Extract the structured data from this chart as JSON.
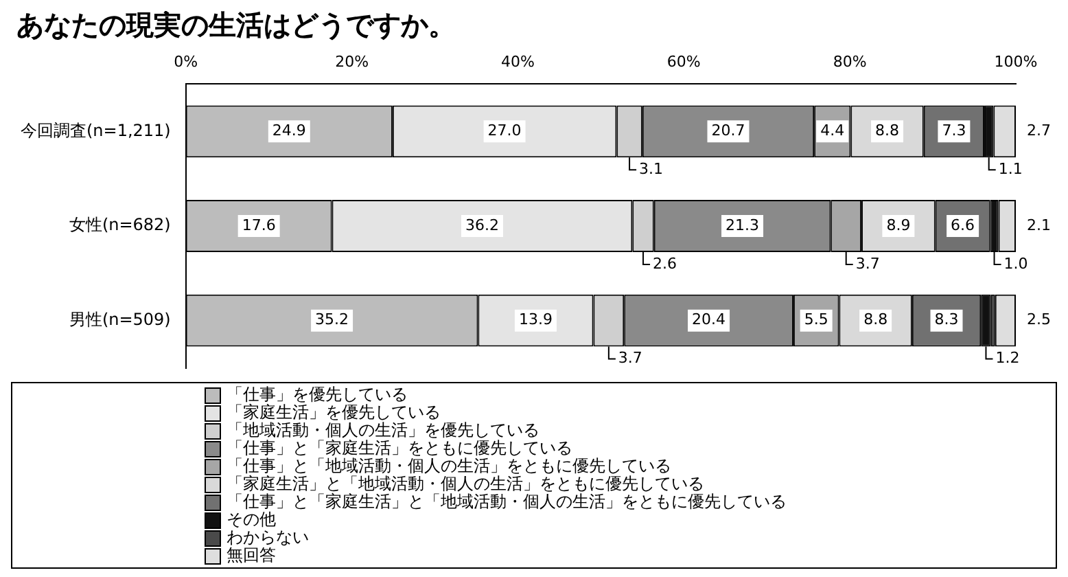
{
  "chart_data": {
    "type": "bar",
    "orientation": "horizontal",
    "stacked": true,
    "title": "あなたの現実の生活はどうですか。",
    "categories": [
      "今回調査(n=1,211)",
      "女性(n=682)",
      "男性(n=509)"
    ],
    "xlim": [
      0,
      100
    ],
    "xticks": [
      {
        "value": 0,
        "label": "0%"
      },
      {
        "value": 20,
        "label": "20%"
      },
      {
        "value": 40,
        "label": "40%"
      },
      {
        "value": 60,
        "label": "60%"
      },
      {
        "value": 80,
        "label": "80%"
      },
      {
        "value": 100,
        "label": "100%"
      }
    ],
    "grid": false,
    "legend": "bottom",
    "series": [
      {
        "name": "「仕事」を優先している",
        "color": "#bcbcbc",
        "values": [
          24.9,
          17.6,
          35.2
        ],
        "value_labels": [
          "24.9",
          "17.6",
          "35.2"
        ]
      },
      {
        "name": "「家庭生活」を優先している",
        "color": "#e4e4e4",
        "values": [
          27.0,
          36.2,
          13.9
        ],
        "value_labels": [
          "27.0",
          "36.2",
          "13.9"
        ]
      },
      {
        "name": "「地域活動・個人の生活」を優先している",
        "color": "#cfcfcf",
        "values": [
          3.1,
          2.6,
          3.7
        ],
        "value_labels": [
          "3.1",
          "2.6",
          "3.7"
        ]
      },
      {
        "name": "「仕事」と「家庭生活」をともに優先している",
        "color": "#8a8a8a",
        "values": [
          20.7,
          21.3,
          20.4
        ],
        "value_labels": [
          "20.7",
          "21.3",
          "20.4"
        ]
      },
      {
        "name": "「仕事」と「地域活動・個人の生活」をともに優先している",
        "color": "#a6a6a6",
        "values": [
          4.4,
          3.7,
          5.5
        ],
        "value_labels": [
          "4.4",
          "3.7",
          "5.5"
        ]
      },
      {
        "name": "「家庭生活」と「地域活動・個人の生活」をともに優先している",
        "color": "#d9d9d9",
        "values": [
          8.8,
          8.9,
          8.8
        ],
        "value_labels": [
          "8.8",
          "8.9",
          "8.8"
        ]
      },
      {
        "name": "「仕事」と「家庭生活」と「地域活動・個人の生活」をともに優先している",
        "color": "#717171",
        "values": [
          7.3,
          6.6,
          8.3
        ],
        "value_labels": [
          "7.3",
          "6.6",
          "8.3"
        ]
      },
      {
        "name": "その他",
        "color": "#111111",
        "values": [
          1.1,
          1.0,
          1.2
        ],
        "value_labels": [
          "1.1",
          "1.0",
          "1.2"
        ]
      },
      {
        "name": "わからない",
        "color": "#4a4a4a",
        "values": [
          0.0,
          0.0,
          0.5
        ],
        "value_labels": [
          null,
          null,
          null
        ]
      },
      {
        "name": "無回答",
        "color": "#dedede",
        "values": [
          2.7,
          2.1,
          2.5
        ],
        "value_labels": [
          "2.7",
          "2.1",
          "2.5"
        ]
      }
    ]
  }
}
